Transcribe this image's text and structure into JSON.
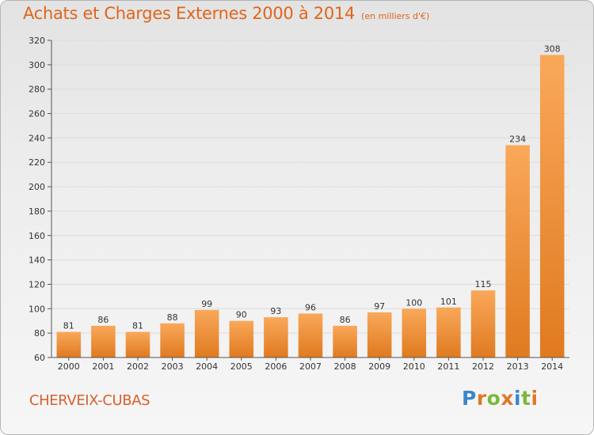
{
  "header": {
    "title": "Achats et Charges Externes 2000 à 2014",
    "subtitle": "(en milliers d'€)"
  },
  "footer": {
    "place": "CHERVEIX-CUBAS",
    "logo_text": "Proxiti",
    "logo_colors": [
      "#3a87c9",
      "#e2762a",
      "#7ab83a",
      "#e2762a",
      "#3a87c9",
      "#7ab83a",
      "#e2762a"
    ]
  },
  "colors": {
    "bar_light": "#f9a85a",
    "bar_dark": "#e07a1f",
    "axis": "#555555",
    "grid": "#dcdcdc",
    "text": "#333333"
  },
  "chart_data": {
    "type": "bar",
    "title": "Achats et Charges Externes 2000 à 2014",
    "subtitle": "(en milliers d'€)",
    "xlabel": "",
    "ylabel": "",
    "categories": [
      "2000",
      "2001",
      "2002",
      "2003",
      "2004",
      "2005",
      "2006",
      "2007",
      "2008",
      "2009",
      "2010",
      "2011",
      "2012",
      "2013",
      "2014"
    ],
    "values": [
      81,
      86,
      81,
      88,
      99,
      90,
      93,
      96,
      86,
      97,
      100,
      101,
      115,
      234,
      308
    ],
    "ylim": [
      60,
      320
    ],
    "yticks": [
      60,
      80,
      100,
      120,
      140,
      160,
      180,
      200,
      220,
      240,
      260,
      280,
      300,
      320
    ],
    "grid": true,
    "data_labels": true
  }
}
